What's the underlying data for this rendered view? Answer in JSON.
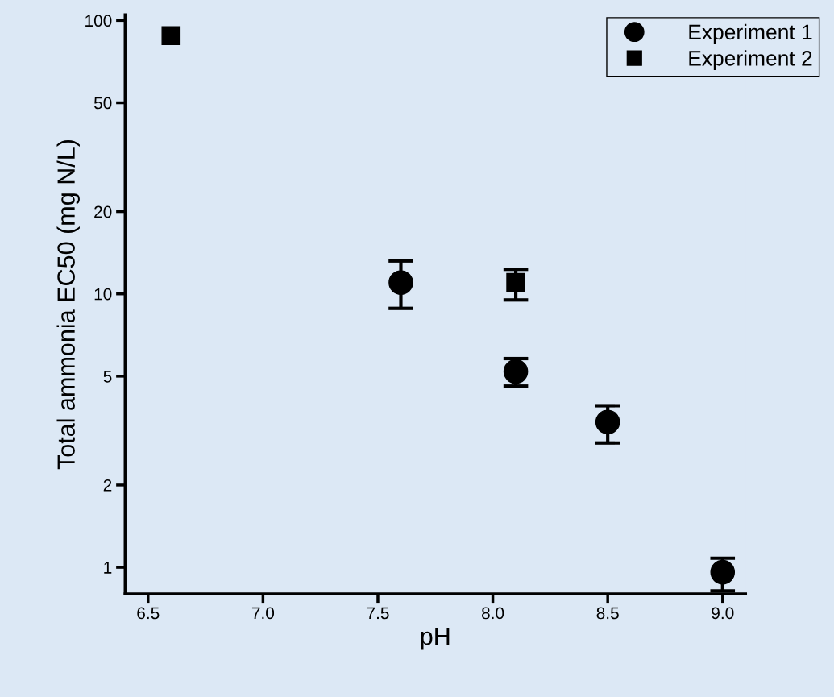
{
  "chart_data": {
    "type": "scatter",
    "xlabel": "pH",
    "ylabel": "Total ammonia EC50 (mg N/L)",
    "log": "y",
    "legend": "top right",
    "grid": false,
    "xlim": [
      6.4,
      9.1
    ],
    "xticks": [
      {
        "value": 6.5,
        "label": "6.5"
      },
      {
        "value": 7.0,
        "label": "7.0"
      },
      {
        "value": 7.5,
        "label": "7.5"
      },
      {
        "value": 8.0,
        "label": "8.0"
      },
      {
        "value": 8.5,
        "label": "8.5"
      },
      {
        "value": 9.0,
        "label": "9.0"
      }
    ],
    "ylim": [
      0.8,
      105
    ],
    "yticks": [
      1,
      2,
      5,
      10,
      20,
      50,
      100
    ],
    "series": [
      {
        "name": "Experiment 1",
        "color": "#000000",
        "marker": "circle",
        "x": [
          7.6,
          8.1,
          8.5,
          9.0
        ],
        "values": [
          11.0,
          5.2,
          3.4,
          0.96
        ],
        "errors": [
          [
            8.85,
            13.2
          ],
          [
            4.6,
            5.8
          ],
          [
            2.85,
            3.9
          ],
          [
            0.82,
            1.08
          ]
        ]
      },
      {
        "name": "Experiment 2",
        "color": "#000000",
        "marker": "square",
        "x": [
          6.6,
          8.1
        ],
        "values": [
          88,
          11.0
        ],
        "errors": [
          null,
          [
            9.5,
            12.3
          ]
        ]
      }
    ]
  }
}
